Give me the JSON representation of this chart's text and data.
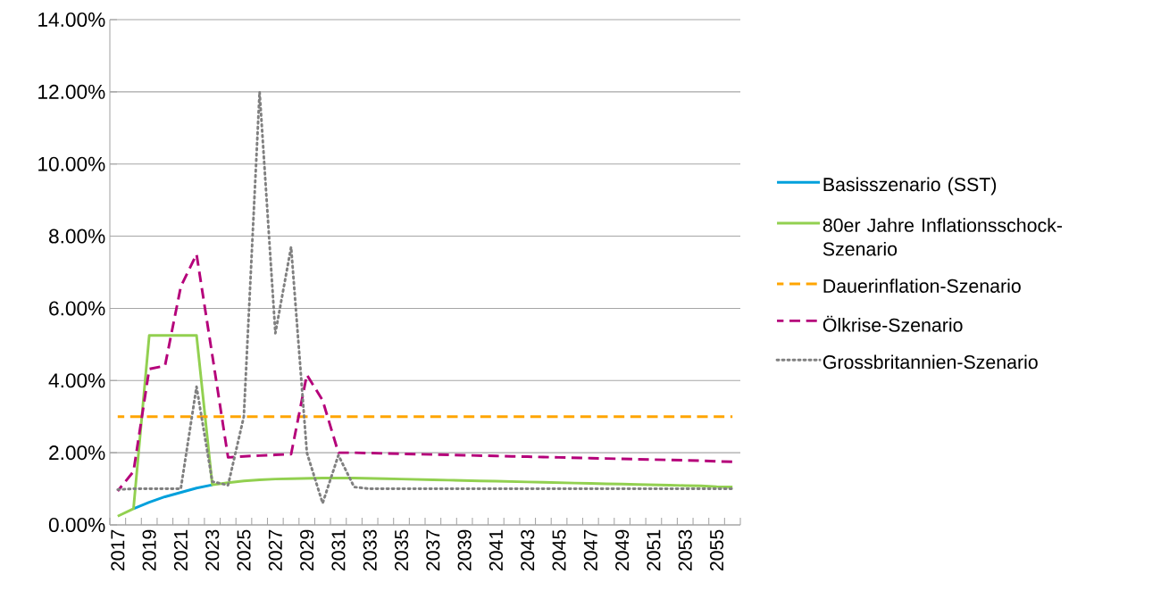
{
  "chart_data": {
    "type": "line",
    "categories": [
      "2017",
      null,
      "2019",
      null,
      "2021",
      null,
      "2023",
      null,
      "2025",
      null,
      "2027",
      null,
      "2029",
      null,
      "2031",
      null,
      "2033",
      null,
      "2035",
      null,
      "2037",
      null,
      "2039",
      null,
      "2041",
      null,
      "2043",
      null,
      "2045",
      null,
      "2047",
      null,
      "2049",
      null,
      "2051",
      null,
      "2053",
      null,
      "2055",
      null
    ],
    "ylim": [
      0,
      14
    ],
    "yticks": [
      {
        "value": 0,
        "label": "0.00%"
      },
      {
        "value": 2,
        "label": "2.00%"
      },
      {
        "value": 4,
        "label": "4.00%"
      },
      {
        "value": 6,
        "label": "6.00%"
      },
      {
        "value": 8,
        "label": "8.00%"
      },
      {
        "value": 10,
        "label": "10.00%"
      },
      {
        "value": 12,
        "label": "12.00%"
      },
      {
        "value": 14,
        "label": "14.00%"
      }
    ],
    "grid": "y",
    "legend": "right",
    "marker": "none",
    "series": [
      {
        "name": "Basisszenario (SST)",
        "color": "#00a0dc",
        "line_style": "solid",
        "values": [
          null,
          0.45,
          0.63,
          0.78,
          0.9,
          1.02,
          1.11,
          null,
          null,
          null,
          null,
          null,
          null,
          null,
          null,
          null,
          null,
          null,
          null,
          null,
          null,
          null,
          null,
          null,
          null,
          null,
          null,
          null,
          null,
          null,
          null,
          null,
          null,
          null,
          null,
          null,
          null,
          null,
          null,
          null
        ]
      },
      {
        "name": "80er Jahre Inflationsschock-Szenario",
        "color": "#92d050",
        "line_style": "solid",
        "values": [
          0.24,
          0.45,
          5.25,
          5.25,
          5.25,
          5.25,
          1.11,
          1.17,
          1.22,
          1.25,
          1.27,
          1.28,
          1.29,
          1.3,
          1.3,
          1.3,
          1.29,
          1.28,
          1.27,
          1.26,
          1.25,
          1.24,
          1.23,
          1.22,
          1.21,
          1.2,
          1.19,
          1.18,
          1.17,
          1.16,
          1.15,
          1.14,
          1.13,
          1.12,
          1.11,
          1.1,
          1.09,
          1.08,
          1.06,
          1.05
        ]
      },
      {
        "name": "Dauerinflation-Szenario",
        "color": "#ffa500",
        "line_style": "dashed",
        "values": [
          3,
          3,
          3,
          3,
          3,
          3,
          3,
          3,
          3,
          3,
          3,
          3,
          3,
          3,
          3,
          3,
          3,
          3,
          3,
          3,
          3,
          3,
          3,
          3,
          3,
          3,
          3,
          3,
          3,
          3,
          3,
          3,
          3,
          3,
          3,
          3,
          3,
          3,
          3,
          3
        ]
      },
      {
        "name": "Ölkrise-Szenario",
        "color": "#b5007a",
        "line_style": "dashed",
        "values": [
          0.94,
          1.48,
          4.32,
          4.41,
          6.6,
          7.5,
          4.7,
          1.87,
          1.9,
          1.92,
          1.94,
          1.96,
          4.16,
          3.45,
          2.0,
          2.0,
          1.99,
          1.98,
          1.97,
          1.96,
          1.95,
          1.94,
          1.93,
          1.92,
          1.91,
          1.9,
          1.89,
          1.88,
          1.87,
          1.86,
          1.85,
          1.84,
          1.83,
          1.82,
          1.81,
          1.8,
          1.79,
          1.78,
          1.76,
          1.75
        ]
      },
      {
        "name": "Grossbritannien-Szenario",
        "color": "#808080",
        "line_style": "dotted",
        "values": [
          0.98,
          1.0,
          1.0,
          1.0,
          1.0,
          3.83,
          1.2,
          1.1,
          3.0,
          12.0,
          5.31,
          7.7,
          2.0,
          0.6,
          1.93,
          1.05,
          1.0,
          1.0,
          1.0,
          1.0,
          1.0,
          1.0,
          1.0,
          1.0,
          1.0,
          1.0,
          1.0,
          1.0,
          1.0,
          1.0,
          1.0,
          1.0,
          1.0,
          1.0,
          1.0,
          1.0,
          1.0,
          1.0,
          1.0,
          1.0
        ]
      }
    ]
  }
}
